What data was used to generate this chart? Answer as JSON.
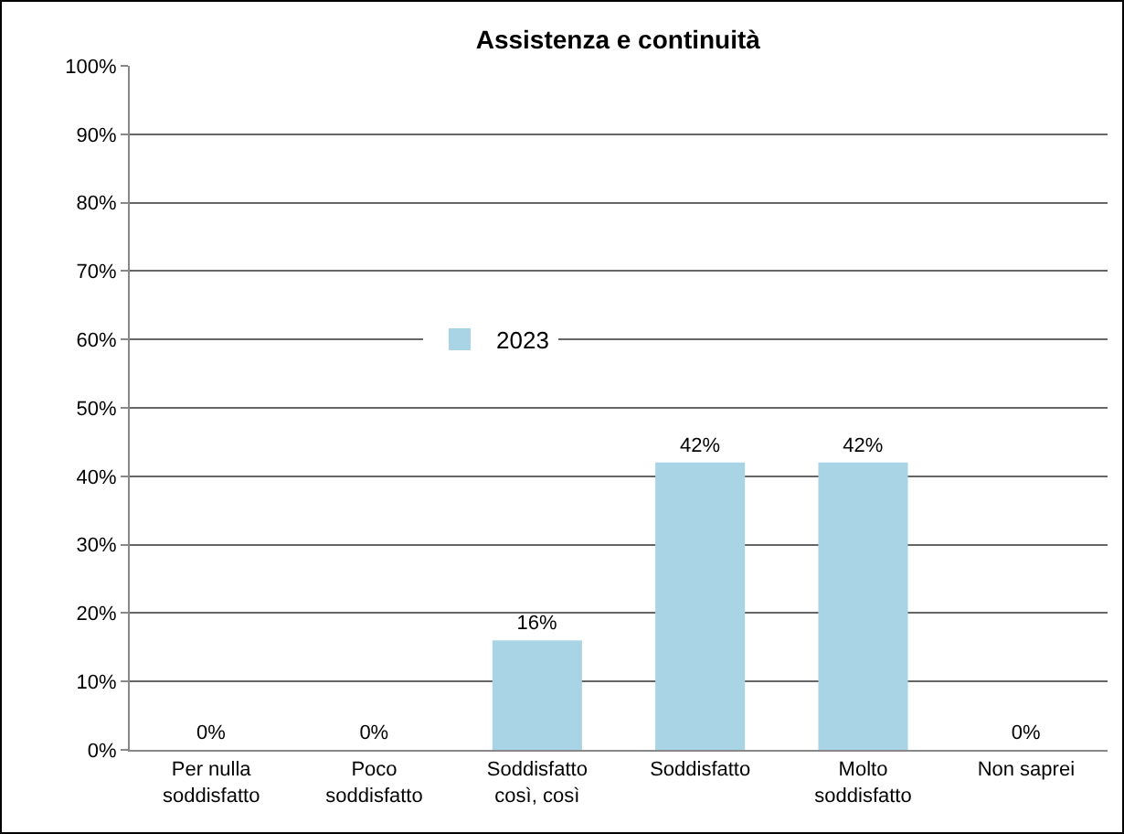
{
  "chart_data": {
    "type": "bar",
    "title": "Assistenza e continuità",
    "categories": [
      "Per nulla\nsoddisfatto",
      "Poco\nsoddisfatto",
      "Soddisfatto\ncosì, così",
      "Soddisfatto",
      "Molto\nsoddisfatto",
      "Non saprei"
    ],
    "series": [
      {
        "name": "2023",
        "color": "#a8d4e6",
        "values": [
          0,
          0,
          16,
          42,
          42,
          0
        ],
        "value_labels": [
          "0%",
          "0%",
          "16%",
          "42%",
          "42%",
          "0%"
        ]
      }
    ],
    "ylim": [
      0,
      100
    ],
    "yticks": [
      {
        "value": 0,
        "label": "0%"
      },
      {
        "value": 10,
        "label": "10%"
      },
      {
        "value": 20,
        "label": "20%"
      },
      {
        "value": 30,
        "label": "30%"
      },
      {
        "value": 40,
        "label": "40%"
      },
      {
        "value": 50,
        "label": "50%"
      },
      {
        "value": 60,
        "label": "60%"
      },
      {
        "value": 70,
        "label": "70%"
      },
      {
        "value": 80,
        "label": "80%"
      },
      {
        "value": 90,
        "label": "90%"
      },
      {
        "value": 100,
        "label": "100%"
      }
    ],
    "grid": "y",
    "legend": "center"
  }
}
